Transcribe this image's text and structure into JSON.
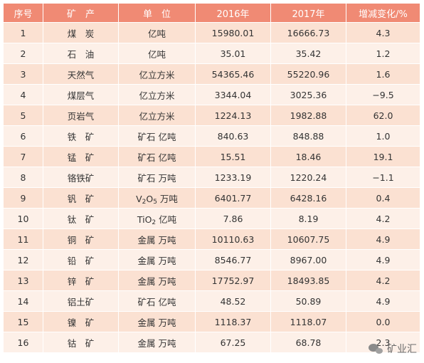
{
  "table": {
    "headers": [
      "序号",
      "矿　产",
      "单　位",
      "2016年",
      "2017年",
      "增减变化/%"
    ],
    "rows": [
      {
        "idx": "1",
        "mineral": "煤　炭",
        "unit": "亿吨",
        "y2016": "15980.01",
        "y2017": "16666.73",
        "change": "4.3"
      },
      {
        "idx": "2",
        "mineral": "石　油",
        "unit": "亿吨",
        "y2016": "35.01",
        "y2017": "35.42",
        "change": "1.2"
      },
      {
        "idx": "3",
        "mineral": "天然气",
        "unit": "亿立方米",
        "y2016": "54365.46",
        "y2017": "55220.96",
        "change": "1.6"
      },
      {
        "idx": "4",
        "mineral": "煤层气",
        "unit": "亿立方米",
        "y2016": "3344.04",
        "y2017": "3025.36",
        "change": "−9.5"
      },
      {
        "idx": "5",
        "mineral": "页岩气",
        "unit": "亿立方米",
        "y2016": "1224.13",
        "y2017": "1982.88",
        "change": "62.0"
      },
      {
        "idx": "6",
        "mineral": "铁　矿",
        "unit": "矿石 亿吨",
        "y2016": "840.63",
        "y2017": "848.88",
        "change": "1.0"
      },
      {
        "idx": "7",
        "mineral": "锰　矿",
        "unit": "矿石 亿吨",
        "y2016": "15.51",
        "y2017": "18.46",
        "change": "19.1"
      },
      {
        "idx": "8",
        "mineral": "铬铁矿",
        "unit": "矿石 万吨",
        "y2016": "1233.19",
        "y2017": "1220.24",
        "change": "−1.1"
      },
      {
        "idx": "9",
        "mineral": "钒　矿",
        "unit_pre": "V",
        "unit_sub1": "2",
        "unit_mid": "O",
        "unit_sub2": "5",
        "unit_post": " 万吨",
        "y2016": "6401.77",
        "y2017": "6428.16",
        "change": "0.4"
      },
      {
        "idx": "10",
        "mineral": "钛　矿",
        "unit_pre": "TiO",
        "unit_sub1": "2",
        "unit_post": " 亿吨",
        "y2016": "7.86",
        "y2017": "8.19",
        "change": "4.2"
      },
      {
        "idx": "11",
        "mineral": "铜　矿",
        "unit": "金属 万吨",
        "y2016": "10110.63",
        "y2017": "10607.75",
        "change": "4.9"
      },
      {
        "idx": "12",
        "mineral": "铅　矿",
        "unit": "金属 万吨",
        "y2016": "8546.77",
        "y2017": "8967.00",
        "change": "4.9"
      },
      {
        "idx": "13",
        "mineral": "锌　矿",
        "unit": "金属 万吨",
        "y2016": "17752.97",
        "y2017": "18493.85",
        "change": "4.2"
      },
      {
        "idx": "14",
        "mineral": "铝土矿",
        "unit": "矿石 亿吨",
        "y2016": "48.52",
        "y2017": "50.89",
        "change": "4.9"
      },
      {
        "idx": "15",
        "mineral": "镍　矿",
        "unit": "金属 万吨",
        "y2016": "1118.37",
        "y2017": "1118.07",
        "change": "0.0"
      },
      {
        "idx": "16",
        "mineral": "钴　矿",
        "unit": "金属 万吨",
        "y2016": "67.25",
        "y2017": "68.78",
        "change": "2.3"
      }
    ]
  },
  "watermark": {
    "text": "矿业汇",
    "icon": "wechat-icon"
  },
  "colors": {
    "header_bg": "#f08a74",
    "row_odd": "#fbe1d2",
    "row_even": "#fdf0e8",
    "header_text": "#ffffff"
  }
}
